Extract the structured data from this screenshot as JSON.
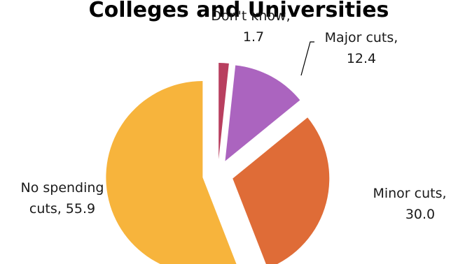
{
  "chart_data": {
    "type": "pie",
    "title": "Colleges and Universities",
    "slices": [
      {
        "label": "Don't know",
        "value": 1.7,
        "color": "#b83f5f"
      },
      {
        "label": "Major cuts",
        "value": 12.4,
        "color": "#ab64bf"
      },
      {
        "label": "Minor cuts",
        "value": 30.0,
        "color": "#df6c37"
      },
      {
        "label": "No spending cuts",
        "value": 55.9,
        "color": "#f7b43c"
      }
    ],
    "data_labels": [
      {
        "lines": [
          "Don't know,",
          "1.7"
        ]
      },
      {
        "lines": [
          "Major cuts,",
          "12.4"
        ]
      },
      {
        "lines": [
          "Minor cuts,",
          "30.0"
        ]
      },
      {
        "lines": [
          "No spending",
          "cuts, 55.9"
        ]
      }
    ],
    "exploded": true
  }
}
